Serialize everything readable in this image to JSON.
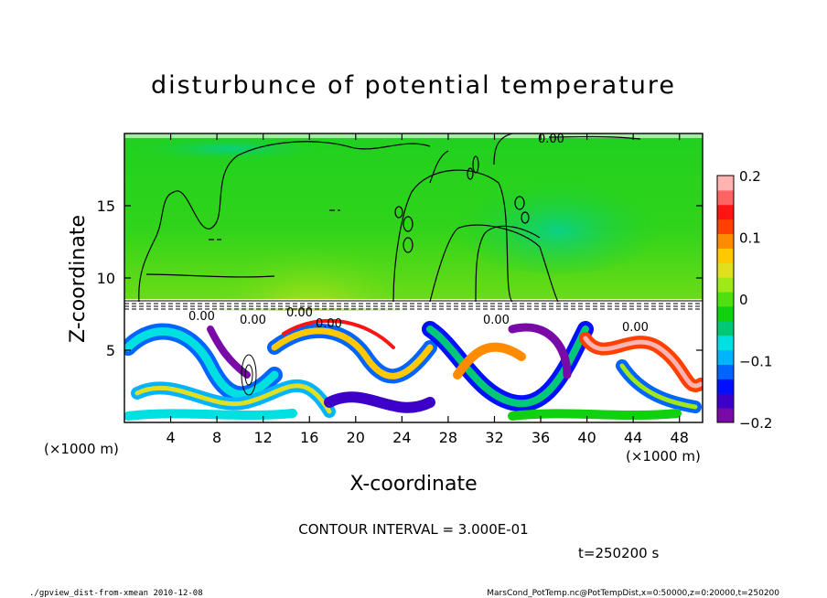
{
  "chart_data": {
    "type": "heatmap",
    "title": "disturbunce of potential temperature",
    "xlabel": "X-coordinate",
    "ylabel": "Z-coordinate",
    "x_unit": "(×1000 m)",
    "y_unit": "(×1000 m)",
    "x_ticks": [
      4,
      8,
      12,
      16,
      20,
      24,
      28,
      32,
      36,
      40,
      44,
      48
    ],
    "y_ticks": [
      5,
      10,
      15
    ],
    "xlim": [
      0,
      50
    ],
    "ylim": [
      0,
      20
    ],
    "colorbar": {
      "ticks": [
        0.2,
        0.1,
        0,
        -0.1,
        -0.2
      ],
      "tick_labels": [
        "0.2",
        "0.1",
        "0",
        "−0.1",
        "−0.2"
      ],
      "range": [
        -0.2,
        0.2
      ],
      "colors": [
        "#7a0aa8",
        "#3c00c8",
        "#0010ff",
        "#0064ff",
        "#00b4ff",
        "#00e0e0",
        "#00c878",
        "#10d010",
        "#50e010",
        "#a0e818",
        "#e0e020",
        "#ffc800",
        "#ff8c00",
        "#ff4000",
        "#ff1414",
        "#ff6464",
        "#ffb4b4"
      ]
    },
    "contour_interval": "CONTOUR INTERVAL = 3.000E-01",
    "contour_labels": [
      "0.00",
      "0.00",
      "0.00",
      "0.00",
      "0.00",
      "0.00",
      "0.00"
    ],
    "grid": false
  },
  "time_label": "t=250200 s",
  "footer": {
    "left": "./gpview_dist-from-xmean  2010-12-08",
    "right": "MarsCond_PotTemp.nc@PotTempDist,x=0:50000,z=0:20000,t=250200"
  }
}
